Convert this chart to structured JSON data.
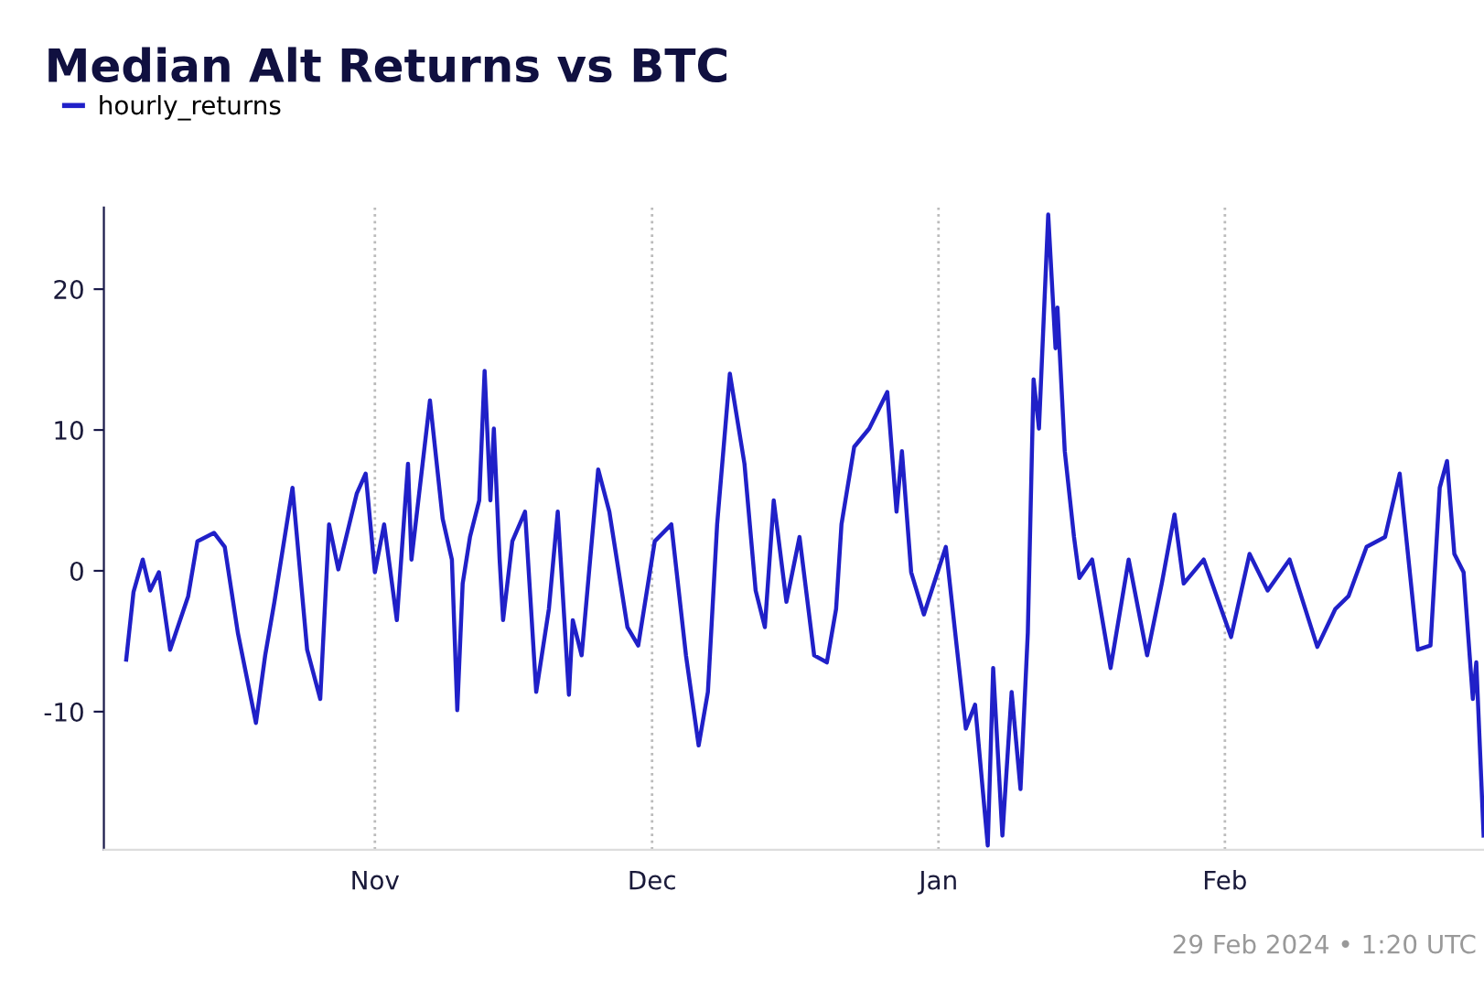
{
  "chart_data": {
    "type": "line",
    "title": "Median Alt Returns vs BTC",
    "annotations": [
      "29 Feb 2024 • 1:20 UTC"
    ],
    "xlim": [
      "2023-10-02T16:00",
      "2024-02-29T01:00"
    ],
    "xticks": [
      {
        "value": "2023-11-01",
        "label": "Nov"
      },
      {
        "value": "2023-12-01",
        "label": "Dec"
      },
      {
        "value": "2024-01-01",
        "label": "Jan"
      },
      {
        "value": "2024-02-01",
        "label": "Feb"
      }
    ],
    "ylim": [
      -19.8,
      25.8
    ],
    "yticks": [
      -10,
      0,
      10,
      20
    ],
    "grid": "x",
    "legend": "top left",
    "marker": "none",
    "line_style": "solid",
    "x": [
      "2023-10-05T02:00",
      "2023-10-05T21:00",
      "2023-10-06T21:00",
      "2023-10-07T16:00",
      "2023-10-08T15:00",
      "2023-10-09T20:00",
      "2023-10-11T19:00",
      "2023-10-12T19:00",
      "2023-10-14T14:00",
      "2023-10-15T18:00",
      "2023-10-17T04:00",
      "2023-10-19T03:00",
      "2023-10-20T03:00",
      "2023-10-21T03:00",
      "2023-10-23T02:00",
      "2023-10-24T16:00",
      "2023-10-26T02:00",
      "2023-10-27T01:00",
      "2023-10-28T01:00",
      "2023-10-30T01:00",
      "2023-10-31T00:00",
      "2023-11-01T00:00",
      "2023-11-02T00:00",
      "2023-11-03T09:00",
      "2023-11-04T14:00",
      "2023-11-04T23:00",
      "2023-11-06T23:00",
      "2023-11-08T08:00",
      "2023-11-09T08:00",
      "2023-11-09T22:00",
      "2023-11-10T12:00",
      "2023-11-11T07:00",
      "2023-11-12T07:00",
      "2023-11-12T21:00",
      "2023-11-13T12:00",
      "2023-11-13T21:00",
      "2023-11-14T12:00",
      "2023-11-14T21:00",
      "2023-11-15T21:00",
      "2023-11-17T06:00",
      "2023-11-18T11:00",
      "2023-11-19T20:00",
      "2023-11-20T19:00",
      "2023-11-22T00:00",
      "2023-11-22T10:00",
      "2023-11-23T09:00",
      "2023-11-25T04:00",
      "2023-11-26T09:00",
      "2023-11-28T08:00",
      "2023-11-29T12:00",
      "2023-12-01T07:00",
      "2023-12-03T02:00",
      "2023-12-04T16:00",
      "2023-12-06T01:00",
      "2023-12-07T01:00",
      "2023-12-08T01:00",
      "2023-12-09T10:00",
      "2023-12-11T00:00",
      "2023-12-12T05:00",
      "2023-12-13T05:00",
      "2023-12-14T04:00",
      "2023-12-15T13:00",
      "2023-12-16T23:00",
      "2023-12-18T13:00",
      "2023-12-19T22:00",
      "2023-12-20T22:00",
      "2023-12-21T12:00",
      "2023-12-22T21:00",
      "2023-12-24T12:00",
      "2023-12-26T11:00",
      "2023-12-27T11:00",
      "2023-12-28T01:00",
      "2023-12-29T01:00",
      "2023-12-30T10:00",
      "2024-01-01T19:00",
      "2024-01-02T23:00",
      "2024-01-03T23:00",
      "2024-01-04T23:00",
      "2024-01-06T08:00",
      "2024-01-06T22:00",
      "2024-01-07T22:00",
      "2024-01-08T22:00",
      "2024-01-09T21:00",
      "2024-01-10T16:00",
      "2024-01-11T07:00",
      "2024-01-11T21:00",
      "2024-01-12T21:00",
      "2024-01-13T16:00",
      "2024-01-13T21:00",
      "2024-01-14T16:00",
      "2024-01-15T16:00",
      "2024-01-16T06:00",
      "2024-01-17T15:00",
      "2024-01-19T15:00",
      "2024-01-21T14:00",
      "2024-01-23T14:00",
      "2024-01-25T04:00",
      "2024-01-26T13:00",
      "2024-01-27T13:00",
      "2024-01-29T17:00",
      "2024-02-01T16:00",
      "2024-02-03T16:00",
      "2024-02-05T15:00",
      "2024-02-08T00:00",
      "2024-02-11T00:00",
      "2024-02-12T23:00",
      "2024-02-14T09:00",
      "2024-02-16T08:00",
      "2024-02-18T08:00",
      "2024-02-19T22:00",
      "2024-02-21T21:00",
      "2024-02-23T06:00",
      "2024-02-24T06:00",
      "2024-02-25T01:00",
      "2024-02-25T20:00",
      "2024-02-26T20:00",
      "2024-02-27T20:00",
      "2024-02-28T05:00",
      "2024-02-29T00:00"
    ],
    "series": [
      {
        "name": "hourly_returns",
        "color": "#2020c8",
        "values": [
          -6.3,
          -1.5,
          0.8,
          -1.4,
          -0.1,
          -5.6,
          -1.8,
          2.1,
          2.7,
          1.7,
          -4.4,
          -10.8,
          -6.0,
          -2.2,
          5.9,
          -5.6,
          -9.1,
          3.3,
          0.1,
          5.5,
          6.9,
          -0.1,
          3.3,
          -3.5,
          7.6,
          0.8,
          12.1,
          3.7,
          0.8,
          -9.9,
          -0.9,
          2.4,
          5.0,
          14.2,
          5.0,
          10.1,
          0.8,
          -3.5,
          2.1,
          4.2,
          -8.6,
          -2.7,
          4.2,
          -8.8,
          -3.5,
          -6.0,
          7.2,
          4.2,
          -4.0,
          -5.3,
          2.1,
          3.3,
          -6.0,
          -12.4,
          -8.6,
          3.3,
          14.0,
          7.6,
          -1.4,
          -4.0,
          5.0,
          -2.2,
          2.4,
          -6.0,
          -6.5,
          -2.7,
          3.3,
          8.8,
          10.1,
          12.7,
          4.2,
          8.5,
          -0.1,
          -3.1,
          1.7,
          -5.3,
          -11.2,
          -9.5,
          -19.5,
          -6.9,
          -18.8,
          -8.6,
          -15.5,
          -4.4,
          13.6,
          10.1,
          25.3,
          15.8,
          18.7,
          8.5,
          2.4,
          -0.5,
          0.8,
          -6.9,
          0.8,
          -6.0,
          -0.9,
          4.0,
          -0.9,
          0.8,
          -4.7,
          1.2,
          -1.4,
          0.8,
          -5.4,
          -2.7,
          -1.8,
          1.7,
          2.4,
          6.9,
          -5.6,
          -5.3,
          5.9,
          7.8,
          1.2,
          -0.1,
          -9.1,
          -6.5,
          -18.8
        ]
      }
    ]
  }
}
